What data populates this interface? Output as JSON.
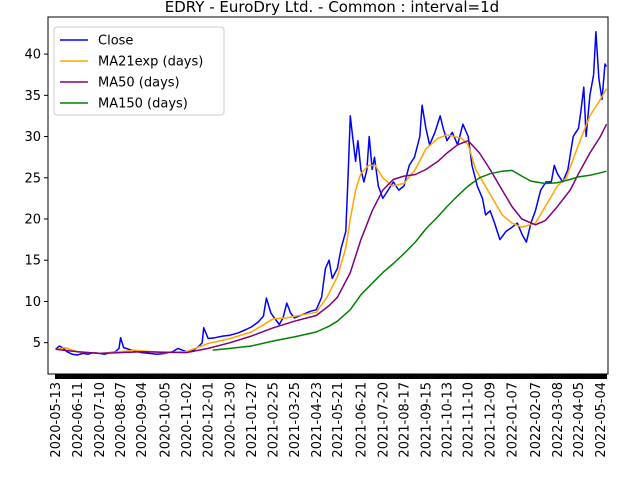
{
  "chart_data": {
    "type": "line",
    "title": "EDRY - EuroDry Ltd. - Common : interval=1d",
    "xlabel": "",
    "ylabel": "",
    "ylim": [
      1.2,
      44.5
    ],
    "yticks": [
      5,
      10,
      15,
      20,
      25,
      30,
      35,
      40
    ],
    "xlim": [
      "2020-05-03",
      "2022-05-14"
    ],
    "xticks": [
      "2020-05-13",
      "2020-06-11",
      "2020-07-10",
      "2020-08-07",
      "2020-09-04",
      "2020-10-05",
      "2020-11-02",
      "2020-12-01",
      "2020-12-30",
      "2021-01-27",
      "2021-02-25",
      "2021-03-25",
      "2021-04-23",
      "2021-05-21",
      "2021-06-21",
      "2021-07-20",
      "2021-08-17",
      "2021-09-15",
      "2021-10-13",
      "2021-11-10",
      "2021-12-09",
      "2022-01-07",
      "2022-02-07",
      "2022-03-08",
      "2022-04-05",
      "2022-05-04"
    ],
    "legend_position": "upper-left",
    "grid": false,
    "series": [
      {
        "name": "Close",
        "color": "#0000ff",
        "points": [
          [
            "2020-05-13",
            4.2
          ],
          [
            "2020-05-18",
            4.6
          ],
          [
            "2020-05-22",
            4.4
          ],
          [
            "2020-05-28",
            3.9
          ],
          [
            "2020-06-04",
            3.6
          ],
          [
            "2020-06-11",
            3.5
          ],
          [
            "2020-06-18",
            3.7
          ],
          [
            "2020-06-25",
            3.6
          ],
          [
            "2020-07-02",
            3.8
          ],
          [
            "2020-07-10",
            3.7
          ],
          [
            "2020-07-17",
            3.6
          ],
          [
            "2020-07-24",
            3.8
          ],
          [
            "2020-07-31",
            3.9
          ],
          [
            "2020-08-05",
            4.3
          ],
          [
            "2020-08-07",
            5.6
          ],
          [
            "2020-08-11",
            4.4
          ],
          [
            "2020-08-18",
            4.2
          ],
          [
            "2020-08-25",
            4.0
          ],
          [
            "2020-09-04",
            3.8
          ],
          [
            "2020-09-14",
            3.7
          ],
          [
            "2020-09-24",
            3.6
          ],
          [
            "2020-10-05",
            3.7
          ],
          [
            "2020-10-15",
            3.9
          ],
          [
            "2020-10-22",
            4.3
          ],
          [
            "2020-11-02",
            3.9
          ],
          [
            "2020-11-10",
            4.0
          ],
          [
            "2020-11-18",
            4.5
          ],
          [
            "2020-11-23",
            5.0
          ],
          [
            "2020-11-25",
            6.8
          ],
          [
            "2020-12-01",
            5.5
          ],
          [
            "2020-12-10",
            5.6
          ],
          [
            "2020-12-20",
            5.8
          ],
          [
            "2020-12-30",
            5.9
          ],
          [
            "2021-01-10",
            6.2
          ],
          [
            "2021-01-20",
            6.6
          ],
          [
            "2021-01-27",
            6.9
          ],
          [
            "2021-02-05",
            7.5
          ],
          [
            "2021-02-12",
            8.2
          ],
          [
            "2021-02-16",
            10.4
          ],
          [
            "2021-02-22",
            8.6
          ],
          [
            "2021-02-25",
            8.2
          ],
          [
            "2021-03-05",
            7.2
          ],
          [
            "2021-03-10",
            8.0
          ],
          [
            "2021-03-15",
            9.8
          ],
          [
            "2021-03-20",
            8.6
          ],
          [
            "2021-03-25",
            8.0
          ],
          [
            "2021-04-05",
            8.4
          ],
          [
            "2021-04-15",
            8.8
          ],
          [
            "2021-04-23",
            9.0
          ],
          [
            "2021-04-30",
            10.5
          ],
          [
            "2021-05-05",
            14.0
          ],
          [
            "2021-05-10",
            15.0
          ],
          [
            "2021-05-14",
            12.8
          ],
          [
            "2021-05-21",
            14.0
          ],
          [
            "2021-05-26",
            16.5
          ],
          [
            "2021-06-01",
            18.5
          ],
          [
            "2021-06-04",
            25.0
          ],
          [
            "2021-06-07",
            32.5
          ],
          [
            "2021-06-10",
            30.0
          ],
          [
            "2021-06-14",
            27.0
          ],
          [
            "2021-06-17",
            29.5
          ],
          [
            "2021-06-21",
            26.0
          ],
          [
            "2021-06-25",
            24.5
          ],
          [
            "2021-06-29",
            26.0
          ],
          [
            "2021-07-02",
            30.0
          ],
          [
            "2021-07-06",
            26.0
          ],
          [
            "2021-07-09",
            27.5
          ],
          [
            "2021-07-14",
            24.0
          ],
          [
            "2021-07-20",
            22.5
          ],
          [
            "2021-07-27",
            23.5
          ],
          [
            "2021-08-03",
            24.5
          ],
          [
            "2021-08-10",
            23.5
          ],
          [
            "2021-08-17",
            24.0
          ],
          [
            "2021-08-24",
            26.5
          ],
          [
            "2021-08-31",
            27.5
          ],
          [
            "2021-09-07",
            30.0
          ],
          [
            "2021-09-10",
            33.8
          ],
          [
            "2021-09-15",
            31.0
          ],
          [
            "2021-09-20",
            29.0
          ],
          [
            "2021-09-27",
            30.5
          ],
          [
            "2021-10-04",
            32.5
          ],
          [
            "2021-10-08",
            31.0
          ],
          [
            "2021-10-13",
            29.5
          ],
          [
            "2021-10-20",
            30.5
          ],
          [
            "2021-10-27",
            29.0
          ],
          [
            "2021-11-03",
            31.5
          ],
          [
            "2021-11-10",
            30.0
          ],
          [
            "2021-11-15",
            26.5
          ],
          [
            "2021-11-22",
            24.0
          ],
          [
            "2021-11-29",
            22.5
          ],
          [
            "2021-12-03",
            20.5
          ],
          [
            "2021-12-09",
            21.0
          ],
          [
            "2021-12-15",
            19.5
          ],
          [
            "2021-12-22",
            17.5
          ],
          [
            "2021-12-30",
            18.5
          ],
          [
            "2022-01-07",
            19.0
          ],
          [
            "2022-01-14",
            19.5
          ],
          [
            "2022-01-21",
            18.0
          ],
          [
            "2022-01-26",
            17.2
          ],
          [
            "2022-02-01",
            19.5
          ],
          [
            "2022-02-07",
            21.0
          ],
          [
            "2022-02-14",
            23.5
          ],
          [
            "2022-02-21",
            24.5
          ],
          [
            "2022-02-28",
            24.5
          ],
          [
            "2022-03-04",
            26.5
          ],
          [
            "2022-03-08",
            25.5
          ],
          [
            "2022-03-15",
            24.5
          ],
          [
            "2022-03-22",
            26.0
          ],
          [
            "2022-03-29",
            30.0
          ],
          [
            "2022-04-05",
            31.0
          ],
          [
            "2022-04-08",
            33.0
          ],
          [
            "2022-04-12",
            36.0
          ],
          [
            "2022-04-15",
            30.0
          ],
          [
            "2022-04-20",
            35.0
          ],
          [
            "2022-04-25",
            37.5
          ],
          [
            "2022-04-28",
            42.7
          ],
          [
            "2022-05-02",
            37.0
          ],
          [
            "2022-05-06",
            34.5
          ],
          [
            "2022-05-10",
            38.8
          ],
          [
            "2022-05-12",
            38.5
          ]
        ]
      },
      {
        "name": "MA21exp (days)",
        "color": "#ffa500",
        "points": [
          [
            "2020-05-13",
            4.2
          ],
          [
            "2020-05-25",
            4.4
          ],
          [
            "2020-06-11",
            3.9
          ],
          [
            "2020-07-10",
            3.7
          ],
          [
            "2020-08-07",
            3.9
          ],
          [
            "2020-08-25",
            4.1
          ],
          [
            "2020-09-04",
            4.0
          ],
          [
            "2020-10-05",
            3.8
          ],
          [
            "2020-11-02",
            3.9
          ],
          [
            "2020-12-01",
            4.9
          ],
          [
            "2020-12-30",
            5.5
          ],
          [
            "2021-01-27",
            6.3
          ],
          [
            "2021-02-25",
            7.9
          ],
          [
            "2021-03-15",
            8.0
          ],
          [
            "2021-03-25",
            8.2
          ],
          [
            "2021-04-23",
            8.7
          ],
          [
            "2021-05-07",
            10.5
          ],
          [
            "2021-05-21",
            13.0
          ],
          [
            "2021-06-01",
            16.5
          ],
          [
            "2021-06-07",
            20.0
          ],
          [
            "2021-06-14",
            23.5
          ],
          [
            "2021-06-21",
            25.5
          ],
          [
            "2021-07-01",
            26.5
          ],
          [
            "2021-07-10",
            26.5
          ],
          [
            "2021-07-20",
            25.0
          ],
          [
            "2021-08-01",
            24.0
          ],
          [
            "2021-08-17",
            24.3
          ],
          [
            "2021-09-01",
            26.0
          ],
          [
            "2021-09-15",
            28.5
          ],
          [
            "2021-10-01",
            29.8
          ],
          [
            "2021-10-13",
            30.2
          ],
          [
            "2021-11-01",
            29.8
          ],
          [
            "2021-11-10",
            29.0
          ],
          [
            "2021-11-20",
            26.0
          ],
          [
            "2021-12-09",
            23.0
          ],
          [
            "2021-12-25",
            20.5
          ],
          [
            "2022-01-07",
            19.5
          ],
          [
            "2022-01-20",
            19.0
          ],
          [
            "2022-02-07",
            19.5
          ],
          [
            "2022-02-20",
            21.5
          ],
          [
            "2022-03-08",
            24.0
          ],
          [
            "2022-03-20",
            25.0
          ],
          [
            "2022-04-05",
            29.0
          ],
          [
            "2022-04-20",
            32.5
          ],
          [
            "2022-05-04",
            34.5
          ],
          [
            "2022-05-12",
            35.8
          ]
        ]
      },
      {
        "name": "MA50 (days)",
        "color": "#800080",
        "points": [
          [
            "2020-05-13",
            4.2
          ],
          [
            "2020-06-11",
            3.9
          ],
          [
            "2020-07-10",
            3.7
          ],
          [
            "2020-08-07",
            3.8
          ],
          [
            "2020-09-04",
            3.9
          ],
          [
            "2020-10-05",
            3.85
          ],
          [
            "2020-11-02",
            3.8
          ],
          [
            "2020-12-01",
            4.3
          ],
          [
            "2020-12-30",
            5.0
          ],
          [
            "2021-01-27",
            5.8
          ],
          [
            "2021-02-25",
            6.8
          ],
          [
            "2021-03-25",
            7.6
          ],
          [
            "2021-04-23",
            8.3
          ],
          [
            "2021-05-10",
            9.5
          ],
          [
            "2021-05-21",
            10.5
          ],
          [
            "2021-06-07",
            13.5
          ],
          [
            "2021-06-21",
            17.5
          ],
          [
            "2021-07-06",
            21.0
          ],
          [
            "2021-07-20",
            23.5
          ],
          [
            "2021-08-03",
            24.8
          ],
          [
            "2021-08-17",
            25.2
          ],
          [
            "2021-09-01",
            25.4
          ],
          [
            "2021-09-15",
            26.0
          ],
          [
            "2021-10-01",
            27.0
          ],
          [
            "2021-10-13",
            28.0
          ],
          [
            "2021-10-27",
            29.0
          ],
          [
            "2021-11-10",
            29.5
          ],
          [
            "2021-11-25",
            28.0
          ],
          [
            "2021-12-09",
            26.0
          ],
          [
            "2021-12-25",
            23.5
          ],
          [
            "2022-01-07",
            21.5
          ],
          [
            "2022-01-20",
            20.0
          ],
          [
            "2022-02-07",
            19.3
          ],
          [
            "2022-02-20",
            19.8
          ],
          [
            "2022-03-08",
            21.5
          ],
          [
            "2022-03-25",
            23.5
          ],
          [
            "2022-04-05",
            25.5
          ],
          [
            "2022-04-20",
            28.0
          ],
          [
            "2022-05-04",
            30.0
          ],
          [
            "2022-05-12",
            31.5
          ]
        ]
      },
      {
        "name": "MA150 (days)",
        "color": "#008000",
        "points": [
          [
            "2020-12-07",
            4.1
          ],
          [
            "2020-12-30",
            4.3
          ],
          [
            "2021-01-27",
            4.6
          ],
          [
            "2021-02-25",
            5.2
          ],
          [
            "2021-03-25",
            5.7
          ],
          [
            "2021-04-23",
            6.3
          ],
          [
            "2021-05-10",
            7.0
          ],
          [
            "2021-05-21",
            7.6
          ],
          [
            "2021-06-07",
            9.0
          ],
          [
            "2021-06-21",
            10.8
          ],
          [
            "2021-07-06",
            12.2
          ],
          [
            "2021-07-20",
            13.5
          ],
          [
            "2021-08-03",
            14.6
          ],
          [
            "2021-08-17",
            15.8
          ],
          [
            "2021-09-01",
            17.2
          ],
          [
            "2021-09-15",
            18.8
          ],
          [
            "2021-10-01",
            20.3
          ],
          [
            "2021-10-13",
            21.5
          ],
          [
            "2021-10-27",
            22.8
          ],
          [
            "2021-11-10",
            24.0
          ],
          [
            "2021-11-25",
            25.0
          ],
          [
            "2021-12-09",
            25.5
          ],
          [
            "2021-12-25",
            25.8
          ],
          [
            "2022-01-07",
            25.9
          ],
          [
            "2022-01-20",
            25.2
          ],
          [
            "2022-02-01",
            24.6
          ],
          [
            "2022-02-07",
            24.5
          ],
          [
            "2022-02-20",
            24.3
          ],
          [
            "2022-03-08",
            24.4
          ],
          [
            "2022-03-25",
            24.8
          ],
          [
            "2022-04-05",
            25.1
          ],
          [
            "2022-04-20",
            25.3
          ],
          [
            "2022-05-04",
            25.6
          ],
          [
            "2022-05-12",
            25.8
          ]
        ]
      }
    ]
  }
}
